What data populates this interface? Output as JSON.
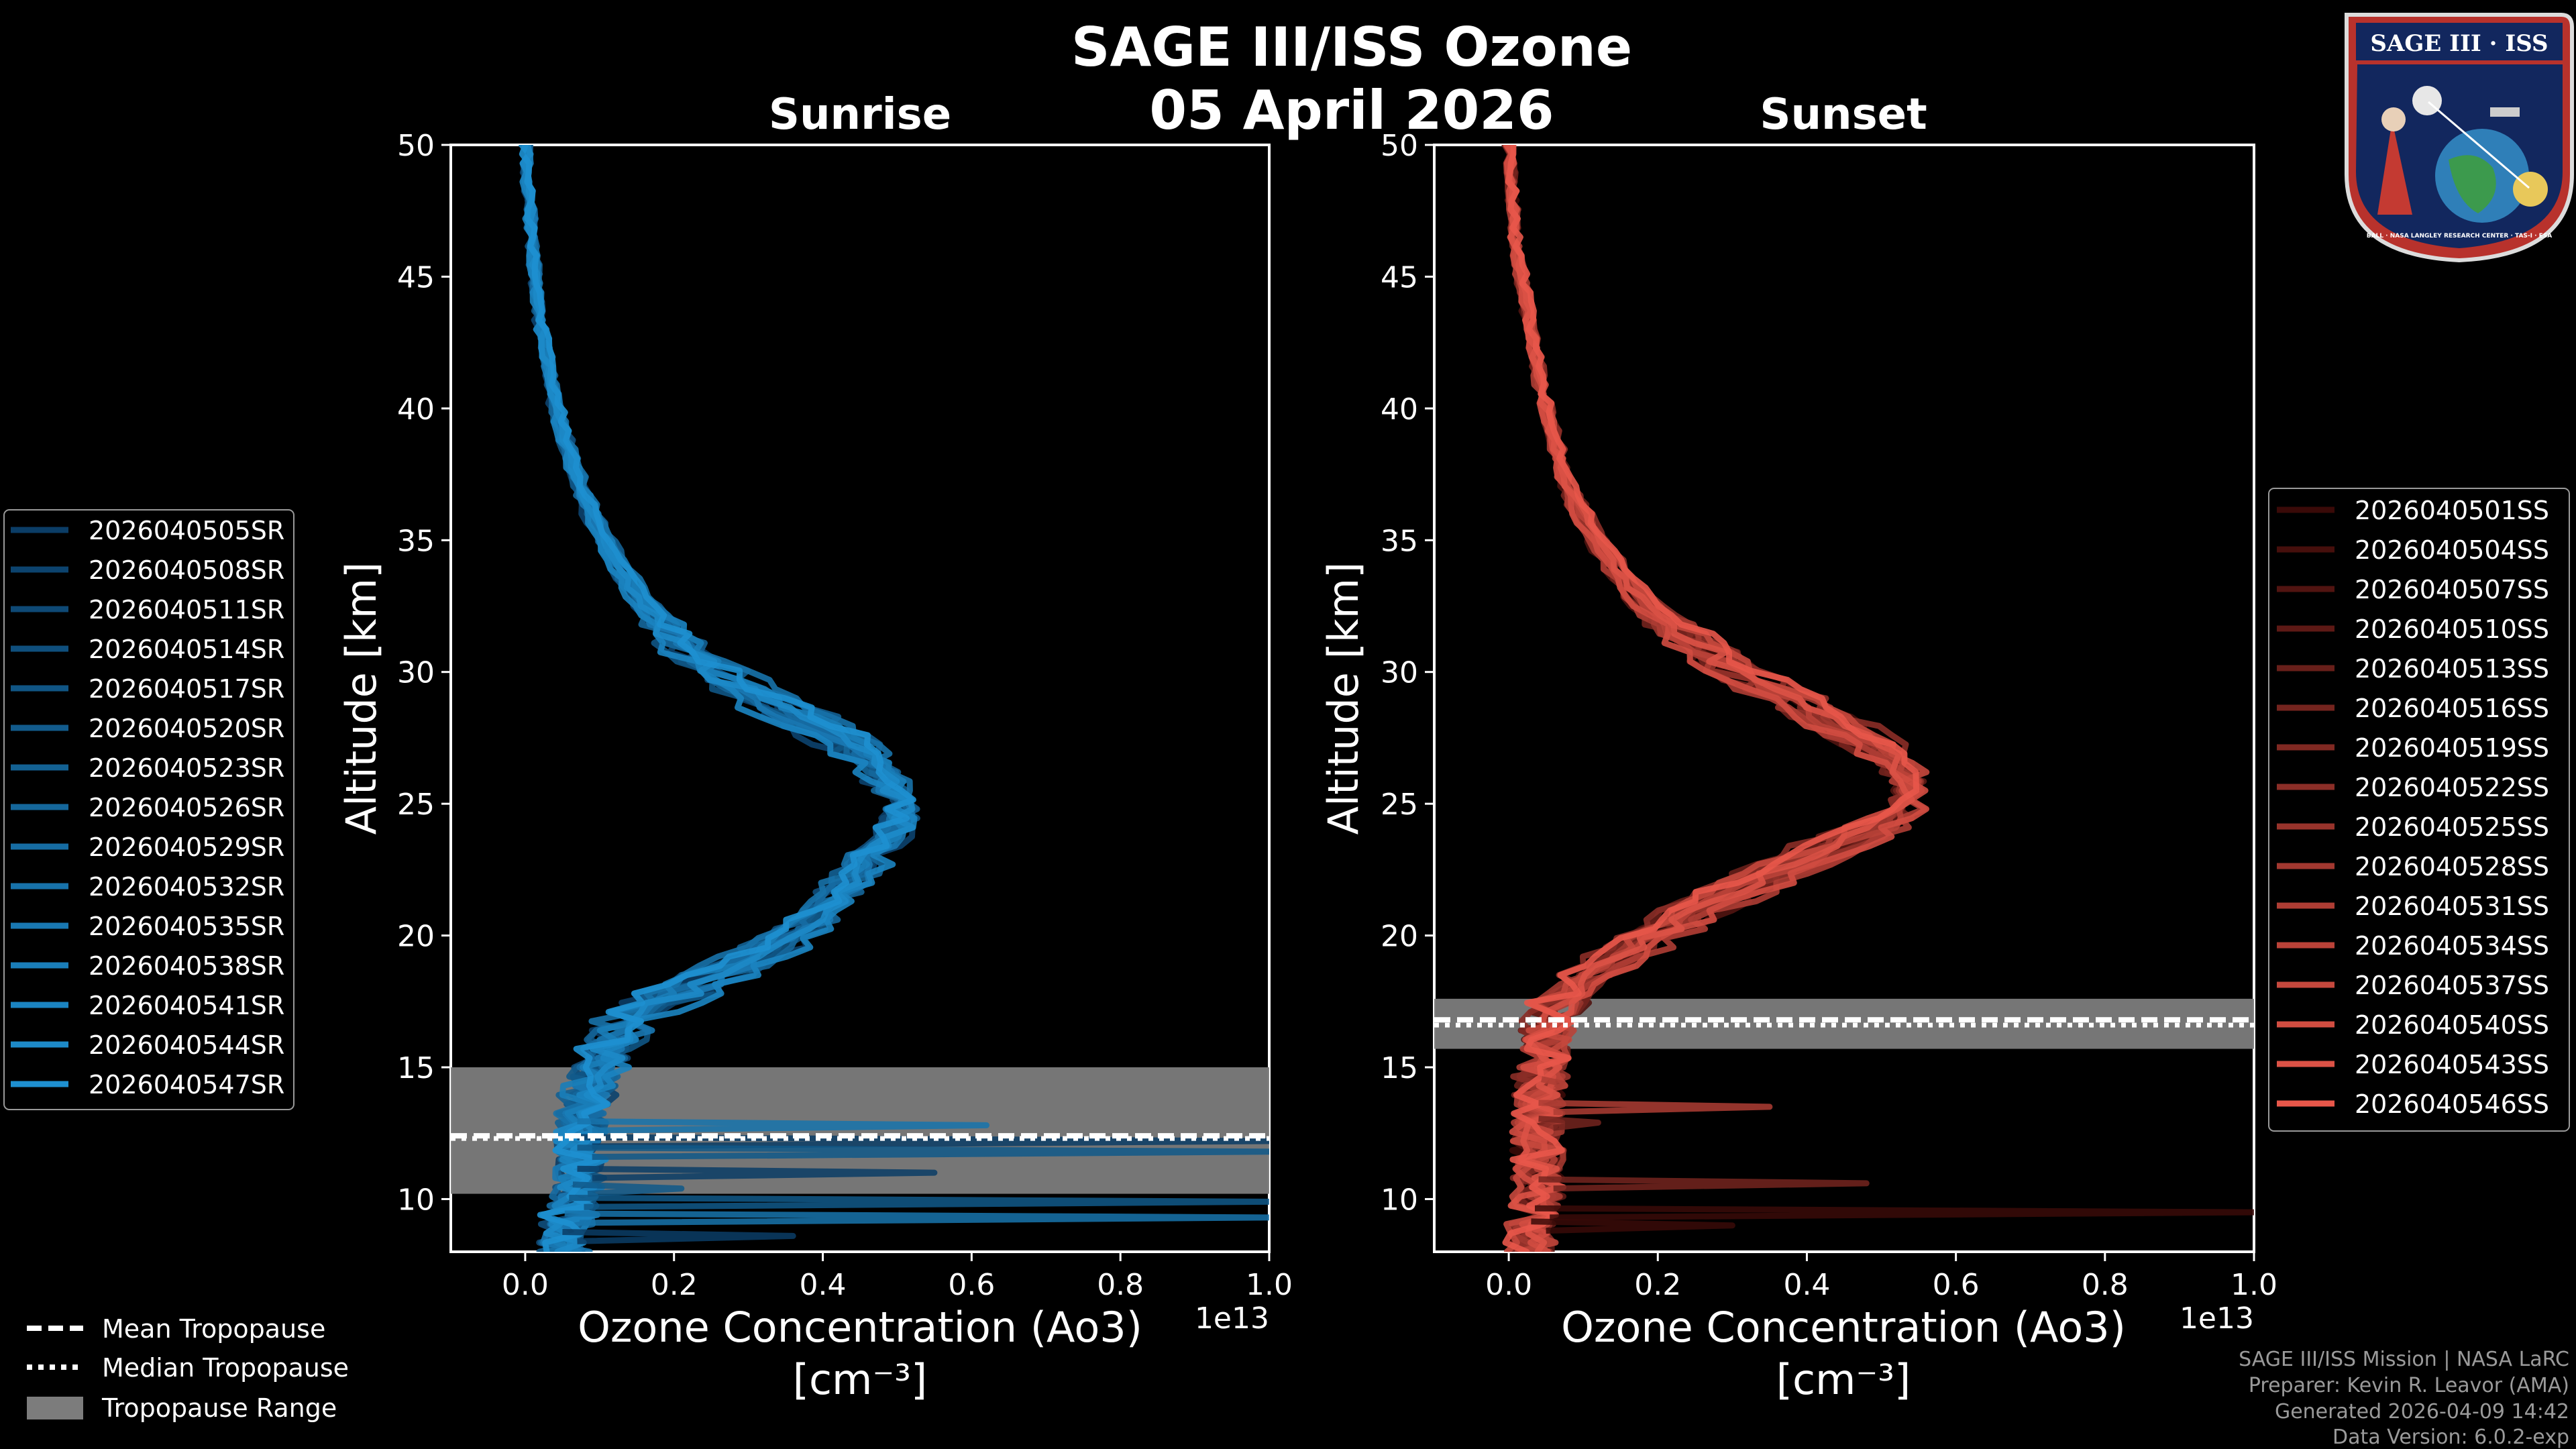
{
  "header": {
    "title": "SAGE III/ISS Ozone",
    "date": "05 April 2026"
  },
  "logo": {
    "label": "SAGE III · ISS",
    "ring_text": "BALL · NASA LANGLEY RESEARCH CENTER · TAS-I · ESA"
  },
  "colors": {
    "background": "#000000",
    "sunrise": "#1e90d0",
    "sunset": "#e8574a",
    "tropopause_band": "#7c7c7c"
  },
  "chart_data": [
    {
      "type": "line",
      "title": "Sunrise",
      "xlabel": "Ozone Concentration (Ao3)",
      "xunit": "[cm⁻³]",
      "ylabel": "Altitude [km]",
      "x_scale_label": "1e13",
      "xlim": [
        -0.1,
        1.0
      ],
      "ylim": [
        8,
        50
      ],
      "xticks": [
        "0.0",
        "0.2",
        "0.4",
        "0.6",
        "0.8",
        "1.0"
      ],
      "yticks": [
        "10",
        "15",
        "20",
        "25",
        "30",
        "35",
        "40",
        "45",
        "50"
      ],
      "tropopause": {
        "mean": 12.4,
        "median": 12.3,
        "range": [
          10.2,
          15.0
        ]
      },
      "series": [
        {
          "name": "2026040505SR"
        },
        {
          "name": "2026040508SR"
        },
        {
          "name": "2026040511SR"
        },
        {
          "name": "2026040514SR"
        },
        {
          "name": "2026040517SR"
        },
        {
          "name": "2026040520SR"
        },
        {
          "name": "2026040523SR"
        },
        {
          "name": "2026040526SR"
        },
        {
          "name": "2026040529SR"
        },
        {
          "name": "2026040532SR"
        },
        {
          "name": "2026040535SR"
        },
        {
          "name": "2026040538SR"
        },
        {
          "name": "2026040541SR"
        },
        {
          "name": "2026040544SR"
        },
        {
          "name": "2026040547SR"
        }
      ],
      "base_profile": {
        "altitude": [
          8,
          9,
          10,
          11,
          12,
          13,
          14,
          15,
          16,
          17,
          18,
          19,
          20,
          21,
          22,
          23,
          24,
          25,
          26,
          27,
          28,
          29,
          30,
          31,
          32,
          33,
          35,
          37,
          40,
          43,
          46,
          50
        ],
        "ozone": [
          0.05,
          0.05,
          0.06,
          0.07,
          0.07,
          0.07,
          0.08,
          0.09,
          0.11,
          0.14,
          0.2,
          0.28,
          0.34,
          0.38,
          0.41,
          0.44,
          0.47,
          0.48,
          0.46,
          0.43,
          0.37,
          0.3,
          0.24,
          0.2,
          0.17,
          0.14,
          0.1,
          0.07,
          0.04,
          0.02,
          0.01,
          0.0
        ]
      },
      "spikes": [
        {
          "altitude": 12.2,
          "ozone": 1.0
        },
        {
          "altitude": 11.8,
          "ozone": 1.0
        },
        {
          "altitude": 12.8,
          "ozone": 0.62
        },
        {
          "altitude": 11.0,
          "ozone": 0.55
        },
        {
          "altitude": 9.9,
          "ozone": 1.0
        },
        {
          "altitude": 9.3,
          "ozone": 1.0
        },
        {
          "altitude": 8.6,
          "ozone": 0.36
        },
        {
          "altitude": 10.4,
          "ozone": 0.21
        }
      ]
    },
    {
      "type": "line",
      "title": "Sunset",
      "xlabel": "Ozone Concentration (Ao3)",
      "xunit": "[cm⁻³]",
      "ylabel": "Altitude [km]",
      "x_scale_label": "1e13",
      "xlim": [
        -0.1,
        1.0
      ],
      "ylim": [
        8,
        50
      ],
      "xticks": [
        "0.0",
        "0.2",
        "0.4",
        "0.6",
        "0.8",
        "1.0"
      ],
      "yticks": [
        "10",
        "15",
        "20",
        "25",
        "30",
        "35",
        "40",
        "45",
        "50"
      ],
      "tropopause": {
        "mean": 16.8,
        "median": 16.6,
        "range": [
          15.7,
          17.6
        ]
      },
      "series": [
        {
          "name": "2026040501SS"
        },
        {
          "name": "2026040504SS"
        },
        {
          "name": "2026040507SS"
        },
        {
          "name": "2026040510SS"
        },
        {
          "name": "2026040513SS"
        },
        {
          "name": "2026040516SS"
        },
        {
          "name": "2026040519SS"
        },
        {
          "name": "2026040522SS"
        },
        {
          "name": "2026040525SS"
        },
        {
          "name": "2026040528SS"
        },
        {
          "name": "2026040531SS"
        },
        {
          "name": "2026040534SS"
        },
        {
          "name": "2026040537SS"
        },
        {
          "name": "2026040540SS"
        },
        {
          "name": "2026040543SS"
        },
        {
          "name": "2026040546SS"
        }
      ],
      "base_profile": {
        "altitude": [
          8,
          9,
          10,
          11,
          12,
          13,
          14,
          15,
          16,
          17,
          18,
          19,
          20,
          21,
          22,
          23,
          24,
          25,
          26,
          27,
          28,
          29,
          30,
          31,
          32,
          33,
          35,
          37,
          40,
          43,
          46,
          50
        ],
        "ozone": [
          0.03,
          0.03,
          0.04,
          0.04,
          0.04,
          0.04,
          0.04,
          0.05,
          0.05,
          0.06,
          0.09,
          0.14,
          0.2,
          0.26,
          0.33,
          0.42,
          0.5,
          0.55,
          0.55,
          0.51,
          0.45,
          0.38,
          0.31,
          0.26,
          0.21,
          0.17,
          0.12,
          0.08,
          0.05,
          0.03,
          0.01,
          0.0
        ]
      },
      "spikes": [
        {
          "altitude": 9.5,
          "ozone": 1.0
        },
        {
          "altitude": 10.6,
          "ozone": 0.48
        },
        {
          "altitude": 13.5,
          "ozone": 0.35
        },
        {
          "altitude": 9.0,
          "ozone": 0.3
        },
        {
          "altitude": 12.9,
          "ozone": 0.12
        },
        {
          "altitude": 14.4,
          "ozone": 0.07
        }
      ]
    }
  ],
  "legend_tropopause": {
    "mean": "Mean Tropopause",
    "median": "Median Tropopause",
    "range": "Tropopause Range"
  },
  "credits": [
    "SAGE III/ISS Mission | NASA LaRC",
    "Preparer: Kevin R. Leavor (AMA)",
    "Generated 2026-04-09 14:42",
    "Data Version: 6.0.2-exp"
  ]
}
